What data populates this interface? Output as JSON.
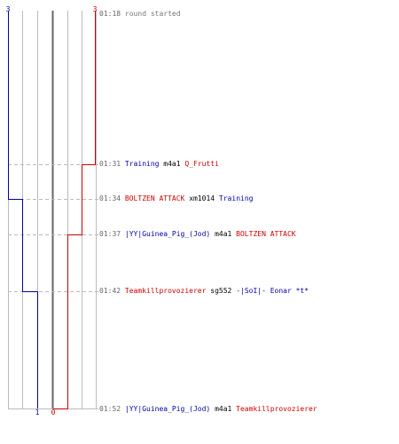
{
  "colors": {
    "blue_team": "#0000aa",
    "red_team": "#cc0000",
    "grid": "#bbbbbb",
    "center": "#666666",
    "dashed": "#bbbbbb",
    "timestamp": "#666666",
    "message": "#777777",
    "weapon": "#000000"
  },
  "score": {
    "blue_start": "3",
    "red_start": "3",
    "blue_end": "1",
    "red_end": "0"
  },
  "events": [
    {
      "time": "01:18",
      "message": "round started",
      "blue_remaining": 3,
      "red_remaining": 3
    },
    {
      "time": "01:31",
      "killer": "Training",
      "killer_team": "blue",
      "weapon": "m4a1",
      "victim": "Q_Frutti",
      "victim_team": "red",
      "blue_remaining": 3,
      "red_remaining": 2
    },
    {
      "time": "01:34",
      "killer": "BOLTZEN ATTACK",
      "killer_team": "red",
      "weapon": "xm1014",
      "victim": "Training",
      "victim_team": "blue",
      "blue_remaining": 2,
      "red_remaining": 2
    },
    {
      "time": "01:37",
      "killer": "|YY|Guinea_Pig_(Jod)",
      "killer_team": "blue",
      "weapon": "m4a1",
      "victim": "BOLTZEN ATTACK",
      "victim_team": "red",
      "blue_remaining": 2,
      "red_remaining": 1
    },
    {
      "time": "01:42",
      "killer": "Teamkillprovozierer",
      "killer_team": "red",
      "weapon": "sg552",
      "victim": "-|SoI|- Eonar *t*",
      "victim_team": "blue",
      "blue_remaining": 1,
      "red_remaining": 1
    },
    {
      "time": "01:52",
      "killer": "|YY|Guinea_Pig_(Jod)",
      "killer_team": "blue",
      "weapon": "m4a1",
      "victim": "Teamkillprovozierer",
      "victim_team": "red",
      "blue_remaining": 1,
      "red_remaining": 0
    }
  ]
}
